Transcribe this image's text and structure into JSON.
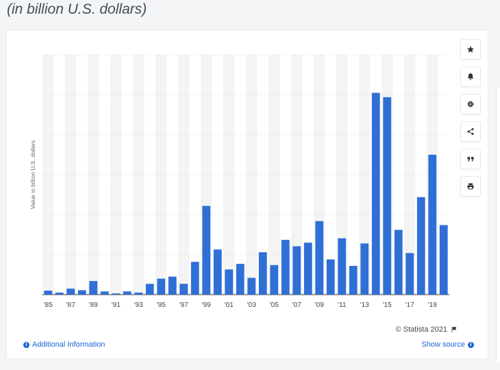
{
  "subtitle": "(in billion U.S. dollars)",
  "copyright": "© Statista 2021",
  "additional_info_label": "Additional Information",
  "show_source_label": "Show source",
  "colors": {
    "bar": "#2f6fd6",
    "grid": "#d9d9d9",
    "band": "#f4f4f4"
  },
  "toolbar": [
    "star-icon",
    "bell-icon",
    "gear-icon",
    "share-icon",
    "quote-icon",
    "print-icon"
  ],
  "chart_data": {
    "type": "bar",
    "title": "",
    "xlabel": "",
    "ylabel": "Value in billion U.S. dollars",
    "ylim": [
      0,
      600
    ],
    "grid": true,
    "categories": [
      "1985",
      "1986",
      "1987",
      "1988",
      "1989",
      "1990",
      "1991",
      "1992",
      "1993",
      "1994",
      "1995",
      "1996",
      "1997",
      "1998",
      "1999",
      "2000",
      "2001",
      "2002",
      "2003",
      "2004",
      "2005",
      "2006",
      "2007",
      "2008",
      "2009",
      "2010",
      "2011",
      "2012",
      "2013",
      "2014",
      "2015",
      "2016",
      "2017",
      "2018",
      "2019",
      "2020"
    ],
    "tick_labels": [
      "'85",
      "",
      "'87",
      "",
      "'89",
      "",
      "'91",
      "",
      "'93",
      "",
      "'95",
      "",
      "'97",
      "",
      "'99",
      "",
      "'01",
      "",
      "'03",
      "",
      "'05",
      "",
      "'07",
      "",
      "'09",
      "",
      "'11",
      "",
      "'13",
      "",
      "'15",
      "",
      "'17",
      "",
      "'19",
      ""
    ],
    "values": [
      10,
      5,
      15,
      11,
      34,
      8,
      3,
      8,
      5,
      27,
      40,
      45,
      27,
      82,
      222,
      113,
      63,
      77,
      42,
      106,
      74,
      137,
      121,
      130,
      184,
      88,
      141,
      72,
      128,
      505,
      494,
      162,
      104,
      244,
      350,
      174
    ]
  }
}
